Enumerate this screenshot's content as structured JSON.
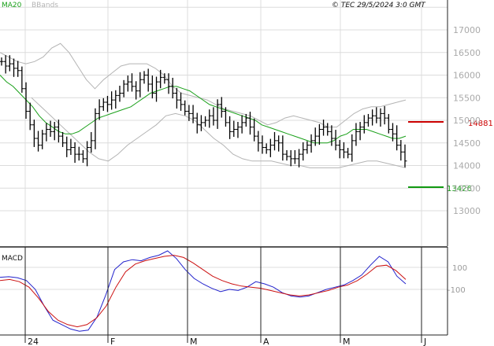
{
  "header": {
    "ma_label": "MA20",
    "bbands_label": "BBands",
    "copyright": "© TEC 29/5/2024 3:0 GMT"
  },
  "colors": {
    "ma": "#1aa01a",
    "bbands": "#b4b4b4",
    "bars": "#000000",
    "macd_line": "#2222cc",
    "signal_line": "#cc1111",
    "resistance": "#cc0000",
    "support": "#119911",
    "grid": "#dcdcdc"
  },
  "levels": {
    "resistance": "14881",
    "support": "13426"
  },
  "macd": {
    "title": "MACD",
    "ticks": [
      "100",
      "-100"
    ]
  },
  "chart_data": {
    "type": "ohlc",
    "y_ticks": [
      "13000",
      "13500",
      "14000",
      "14500",
      "15000",
      "15500",
      "16000",
      "16500",
      "17000"
    ],
    "ylim": [
      12450,
      17250
    ],
    "x_ticks": [
      "24",
      "F",
      "M",
      "A",
      "M",
      "J"
    ],
    "legend": [
      "MA20",
      "BBands"
    ],
    "resistance": 14881,
    "support": 13426,
    "price_close": [
      16300,
      16200,
      16250,
      16150,
      16100,
      15700,
      15200,
      14900,
      14600,
      14450,
      14700,
      14800,
      14750,
      14850,
      14650,
      14500,
      14350,
      14400,
      14250,
      14250,
      14150,
      14400,
      14550,
      15150,
      15300,
      15400,
      15350,
      15450,
      15550,
      15600,
      15800,
      15850,
      15750,
      15650,
      15900,
      16000,
      15800,
      15600,
      15850,
      15950,
      15900,
      15750,
      15600,
      15450,
      15350,
      15200,
      15150,
      15050,
      14900,
      14950,
      15000,
      15100,
      15000,
      15350,
      15200,
      14950,
      14750,
      14800,
      14850,
      14950,
      15050,
      14850,
      14650,
      14500,
      14400,
      14350,
      14450,
      14550,
      14500,
      14250,
      14200,
      14150,
      14150,
      14250,
      14350,
      14450,
      14550,
      14650,
      14800,
      14850,
      14750,
      14600,
      14450,
      14350,
      14300,
      14250,
      14550,
      14750,
      14850,
      14950,
      15050,
      15100,
      15050,
      15150,
      15050,
      14800,
      14700,
      14450,
      14300,
      14100
    ],
    "ma20": [
      16000,
      15850,
      15750,
      15600,
      15450,
      15300,
      15100,
      14950,
      14850,
      14750,
      14700,
      14700,
      14750,
      14850,
      14950,
      15050,
      15100,
      15150,
      15200,
      15250,
      15300,
      15400,
      15500,
      15600,
      15650,
      15700,
      15750,
      15750,
      15700,
      15650,
      15550,
      15450,
      15350,
      15300,
      15250,
      15200,
      15150,
      15100,
      15050,
      15000,
      14900,
      14850,
      14800,
      14750,
      14700,
      14650,
      14600,
      14550,
      14500,
      14500,
      14500,
      14550,
      14650,
      14700,
      14800,
      14800,
      14800,
      14750,
      14700,
      14650,
      14600,
      14600,
      14650
    ],
    "bb_upper": [
      16500,
      16400,
      16300,
      16250,
      16300,
      16400,
      16600,
      16700,
      16500,
      16200,
      15900,
      15700,
      15900,
      16050,
      16200,
      16250,
      16250,
      16250,
      16150,
      16000,
      15750,
      15600,
      15550,
      15500,
      15450,
      15350,
      15250,
      15200,
      15150,
      15100,
      15000,
      14900,
      14950,
      15050,
      15100,
      15050,
      15000,
      14950,
      14850,
      14850,
      15000,
      15150,
      15250,
      15300,
      15300,
      15350,
      15400,
      15450
    ],
    "bb_lower": [
      15500,
      15300,
      15100,
      14900,
      14700,
      14500,
      14300,
      14150,
      14100,
      14250,
      14450,
      14600,
      14750,
      14900,
      15100,
      15150,
      15100,
      15000,
      14800,
      14600,
      14450,
      14250,
      14150,
      14100,
      14100,
      14100,
      14050,
      14000,
      14000,
      13950,
      13950,
      13950,
      13950,
      14000,
      14050,
      14100,
      14100,
      14050,
      14000,
      13950
    ]
  },
  "macd_data": {
    "ylim": [
      -520,
      280
    ],
    "macd": [
      10,
      15,
      5,
      -20,
      -100,
      -250,
      -380,
      -420,
      -460,
      -480,
      -470,
      -350,
      -150,
      80,
      150,
      170,
      160,
      190,
      210,
      250,
      180,
      80,
      0,
      -50,
      -90,
      -120,
      -100,
      -110,
      -80,
      -30,
      -50,
      -80,
      -130,
      -160,
      -170,
      -160,
      -130,
      -100,
      -80,
      -60,
      -20,
      30,
      120,
      200,
      150,
      20,
      -50
    ],
    "signal": [
      -20,
      -10,
      -30,
      -80,
      -180,
      -300,
      -380,
      -420,
      -440,
      -420,
      -360,
      -250,
      -80,
      60,
      130,
      160,
      180,
      200,
      210,
      190,
      140,
      80,
      20,
      -20,
      -50,
      -70,
      -80,
      -90,
      -110,
      -130,
      -150,
      -160,
      -150,
      -130,
      -110,
      -80,
      -60,
      -20,
      40,
      110,
      120,
      70,
      -10
    ]
  }
}
